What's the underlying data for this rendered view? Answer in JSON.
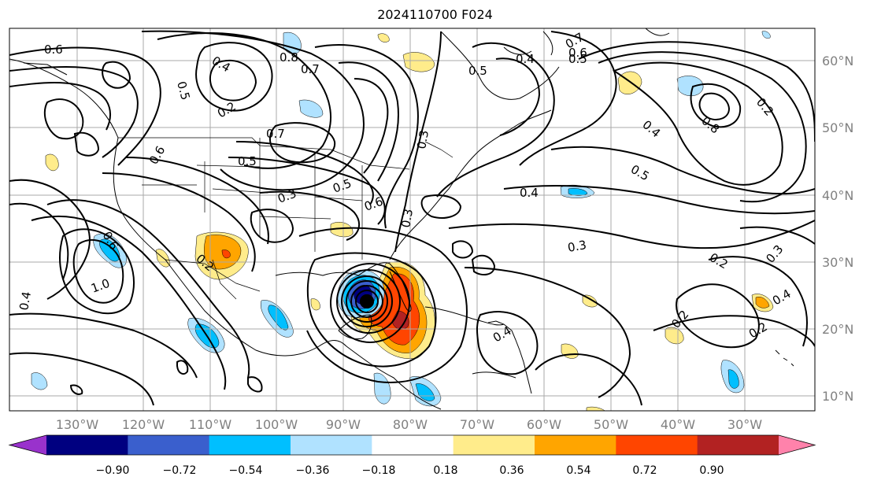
{
  "title": "2024110700 F024",
  "map": {
    "longitude_labels": [
      "130°W",
      "120°W",
      "110°W",
      "100°W",
      "90°W",
      "80°W",
      "70°W",
      "60°W",
      "50°W",
      "40°W",
      "30°W"
    ],
    "latitude_labels": [
      "60°N",
      "50°N",
      "40°N",
      "30°N",
      "20°N",
      "10°N"
    ],
    "contour_labels": [
      {
        "text": "0.6"
      },
      {
        "text": "0.4"
      },
      {
        "text": "0.5"
      },
      {
        "text": "0.8"
      },
      {
        "text": "0.7"
      },
      {
        "text": "0.2"
      },
      {
        "text": "0.7"
      },
      {
        "text": "0.6"
      },
      {
        "text": "0.5"
      },
      {
        "text": "0.3"
      },
      {
        "text": "0.5"
      },
      {
        "text": "0.6"
      },
      {
        "text": "0.3"
      },
      {
        "text": "0.4"
      },
      {
        "text": "0.5"
      },
      {
        "text": "0.4"
      },
      {
        "text": "0.3"
      },
      {
        "text": "0.2"
      },
      {
        "text": "0.3"
      },
      {
        "text": "0.2"
      },
      {
        "text": "0.4"
      },
      {
        "text": "0.2"
      },
      {
        "text": "1.0"
      },
      {
        "text": "0.6"
      },
      {
        "text": "0.4"
      },
      {
        "text": "0.2"
      },
      {
        "text": "0.4"
      },
      {
        "text": "0.3"
      },
      {
        "text": "0.7"
      },
      {
        "text": "0.6"
      },
      {
        "text": "0.5"
      },
      {
        "text": "0.4"
      },
      {
        "text": "0.5"
      },
      {
        "text": "0.2"
      },
      {
        "text": "0.8"
      }
    ]
  },
  "colorbar": {
    "ticks": [
      "−0.90",
      "−0.72",
      "−0.54",
      "−0.36",
      "−0.18",
      "0.18",
      "0.36",
      "0.54",
      "0.72",
      "0.90"
    ],
    "colors": [
      "#9932cc",
      "#000080",
      "#3a5fcd",
      "#00bfff",
      "#b0e2ff",
      "#ffffff",
      "#ffec8b",
      "#ffa500",
      "#ff4500",
      "#b22222",
      "#ff82ab"
    ]
  },
  "colors": {
    "neg_light": "#b0e2ff",
    "neg_mid": "#00bfff",
    "neg_dark": "#3a5fcd",
    "neg_darker": "#000080",
    "pos_light": "#ffec8b",
    "pos_mid": "#ffa500",
    "pos_dark": "#ff4500",
    "pos_darker": "#b22222"
  }
}
